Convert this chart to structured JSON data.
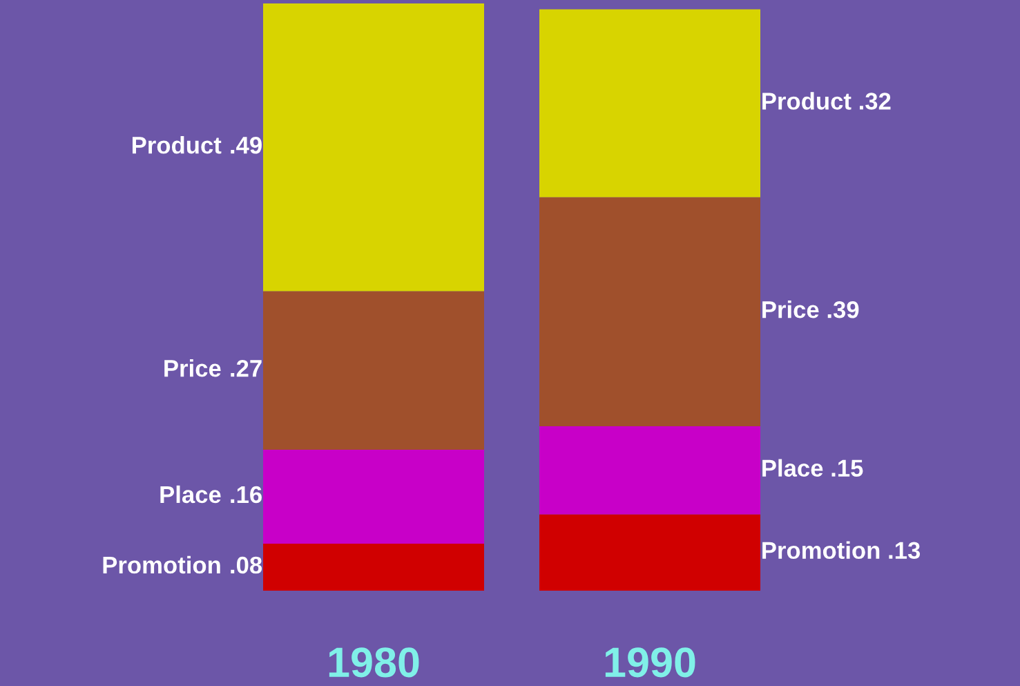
{
  "chart_data": {
    "type": "bar",
    "stacked": true,
    "categories": [
      "1980",
      "1990"
    ],
    "series": [
      {
        "name": "Promotion",
        "color": "#d00000",
        "values": [
          0.08,
          0.13
        ],
        "value_labels": [
          ".08",
          ".13"
        ]
      },
      {
        "name": "Place",
        "color": "#c800c8",
        "values": [
          0.16,
          0.15
        ],
        "value_labels": [
          ".16",
          ".15"
        ]
      },
      {
        "name": "Price",
        "color": "#a0502c",
        "values": [
          0.27,
          0.39
        ],
        "value_labels": [
          ".27",
          ".39"
        ]
      },
      {
        "name": "Product",
        "color": "#d8d400",
        "values": [
          0.49,
          0.32
        ],
        "value_labels": [
          ".49",
          ".32"
        ]
      }
    ]
  }
}
